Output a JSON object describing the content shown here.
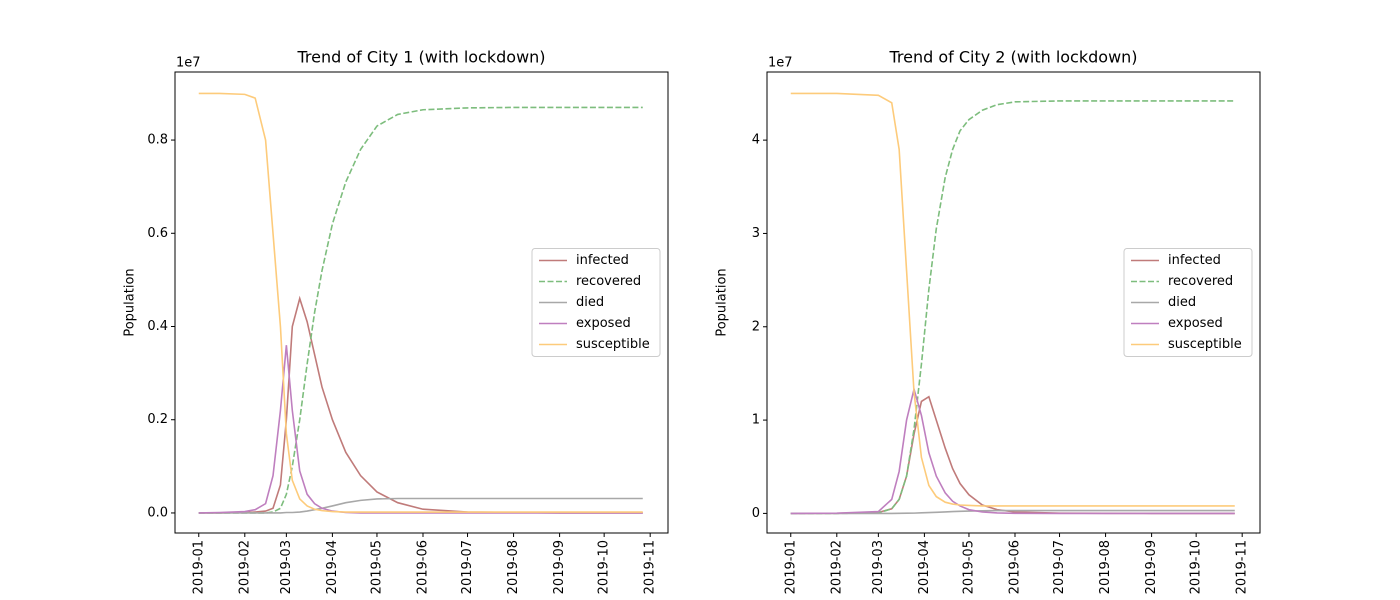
{
  "chart_data": [
    {
      "type": "line",
      "title": "Trend of City 1 (with lockdown)",
      "y_label": "Population",
      "y_offset_label": "1e7",
      "x": [
        "2019-01-01",
        "2019-01-15",
        "2019-02-01",
        "2019-02-08",
        "2019-02-15",
        "2019-02-20",
        "2019-02-25",
        "2019-03-01",
        "2019-03-05",
        "2019-03-10",
        "2019-03-15",
        "2019-03-20",
        "2019-03-25",
        "2019-04-01",
        "2019-04-10",
        "2019-04-20",
        "2019-05-01",
        "2019-05-15",
        "2019-06-01",
        "2019-07-01",
        "2019-08-01",
        "2019-09-01",
        "2019-10-01",
        "2019-10-27"
      ],
      "series": [
        {
          "name": "infected",
          "color": "#c07b7a",
          "linestyle": "solid",
          "values": [
            0,
            0,
            0.001,
            0.002,
            0.004,
            0.01,
            0.06,
            0.2,
            0.4,
            0.46,
            0.41,
            0.34,
            0.27,
            0.2,
            0.13,
            0.08,
            0.045,
            0.022,
            0.008,
            0.002,
            0.001,
            0,
            0,
            0
          ]
        },
        {
          "name": "recovered",
          "color": "#7dbd7d",
          "linestyle": "dashed",
          "values": [
            0,
            0,
            0,
            0,
            0,
            0.002,
            0.01,
            0.04,
            0.1,
            0.2,
            0.32,
            0.43,
            0.52,
            0.62,
            0.71,
            0.78,
            0.83,
            0.855,
            0.865,
            0.869,
            0.87,
            0.87,
            0.87,
            0.87
          ]
        },
        {
          "name": "died",
          "color": "#a8a8a8",
          "linestyle": "solid",
          "values": [
            0,
            0,
            0,
            0,
            0,
            0,
            0,
            0.001,
            0.001,
            0.002,
            0.004,
            0.007,
            0.01,
            0.015,
            0.022,
            0.027,
            0.03,
            0.031,
            0.031,
            0.031,
            0.031,
            0.031,
            0.031,
            0.031
          ]
        },
        {
          "name": "exposed",
          "color": "#bf7fbf",
          "linestyle": "solid",
          "values": [
            0,
            0.001,
            0.003,
            0.007,
            0.02,
            0.08,
            0.22,
            0.36,
            0.22,
            0.09,
            0.04,
            0.02,
            0.01,
            0.004,
            0.001,
            0,
            0,
            0,
            0,
            0,
            0,
            0,
            0,
            0
          ]
        },
        {
          "name": "susceptible",
          "color": "#fdcb7b",
          "linestyle": "solid",
          "values": [
            0.9,
            0.9,
            0.898,
            0.89,
            0.8,
            0.6,
            0.4,
            0.17,
            0.07,
            0.03,
            0.015,
            0.008,
            0.005,
            0.003,
            0.002,
            0.002,
            0.002,
            0.002,
            0.002,
            0.002,
            0.002,
            0.002,
            0.002,
            0.002
          ]
        }
      ],
      "xlim": [
        "2018-12-16",
        "2019-11-13"
      ],
      "xticks": [
        "2019-01",
        "2019-02",
        "2019-03",
        "2019-04",
        "2019-05",
        "2019-06",
        "2019-07",
        "2019-08",
        "2019-09",
        "2019-10",
        "2019-11"
      ],
      "ylim": [
        -0.043,
        0.946
      ],
      "yticks": [
        {
          "value": 0,
          "label": "0.0"
        },
        0.2,
        0.4,
        0.6,
        0.8
      ],
      "grid": false,
      "legend": "center right"
    },
    {
      "type": "line",
      "title": "Trend of City 2 (with lockdown)",
      "y_label": "Population",
      "y_offset_label": "1e7",
      "x": [
        "2019-01-01",
        "2019-02-01",
        "2019-03-01",
        "2019-03-10",
        "2019-03-15",
        "2019-03-20",
        "2019-03-25",
        "2019-03-30",
        "2019-04-04",
        "2019-04-09",
        "2019-04-15",
        "2019-04-20",
        "2019-04-25",
        "2019-05-01",
        "2019-05-10",
        "2019-05-20",
        "2019-06-01",
        "2019-07-01",
        "2019-08-01",
        "2019-09-01",
        "2019-10-01",
        "2019-10-27"
      ],
      "series": [
        {
          "name": "infected",
          "color": "#c07b7a",
          "linestyle": "solid",
          "values": [
            0,
            0.001,
            0.01,
            0.05,
            0.15,
            0.4,
            0.85,
            1.2,
            1.25,
            1.0,
            0.7,
            0.48,
            0.32,
            0.2,
            0.09,
            0.04,
            0.015,
            0.003,
            0.001,
            0,
            0,
            0
          ]
        },
        {
          "name": "recovered",
          "color": "#7dbd7d",
          "linestyle": "dashed",
          "values": [
            0,
            0,
            0.005,
            0.05,
            0.15,
            0.4,
            0.9,
            1.6,
            2.4,
            3.05,
            3.6,
            3.9,
            4.1,
            4.22,
            4.32,
            4.38,
            4.41,
            4.42,
            4.42,
            4.42,
            4.42,
            4.42
          ]
        },
        {
          "name": "died",
          "color": "#a8a8a8",
          "linestyle": "solid",
          "values": [
            0,
            0,
            0,
            0,
            0.001,
            0.002,
            0.003,
            0.006,
            0.009,
            0.012,
            0.016,
            0.02,
            0.022,
            0.025,
            0.028,
            0.03,
            0.03,
            0.03,
            0.03,
            0.03,
            0.03,
            0.03
          ]
        },
        {
          "name": "exposed",
          "color": "#bf7fbf",
          "linestyle": "solid",
          "values": [
            0,
            0.003,
            0.02,
            0.15,
            0.45,
            1.0,
            1.33,
            1.05,
            0.65,
            0.4,
            0.22,
            0.13,
            0.08,
            0.04,
            0.015,
            0.005,
            0.001,
            0,
            0,
            0,
            0,
            0
          ]
        },
        {
          "name": "susceptible",
          "color": "#fdcb7b",
          "linestyle": "solid",
          "values": [
            4.5,
            4.5,
            4.48,
            4.4,
            3.9,
            2.6,
            1.3,
            0.6,
            0.3,
            0.18,
            0.12,
            0.1,
            0.09,
            0.085,
            0.08,
            0.08,
            0.08,
            0.08,
            0.08,
            0.08,
            0.08,
            0.08
          ]
        }
      ],
      "xlim": [
        "2018-12-16",
        "2019-11-13"
      ],
      "xticks": [
        "2019-01",
        "2019-02",
        "2019-03",
        "2019-04",
        "2019-05",
        "2019-06",
        "2019-07",
        "2019-08",
        "2019-09",
        "2019-10",
        "2019-11"
      ],
      "ylim": [
        -0.21,
        4.73
      ],
      "yticks": [
        0,
        1,
        2,
        3,
        4
      ],
      "grid": false,
      "legend": "center right"
    }
  ]
}
